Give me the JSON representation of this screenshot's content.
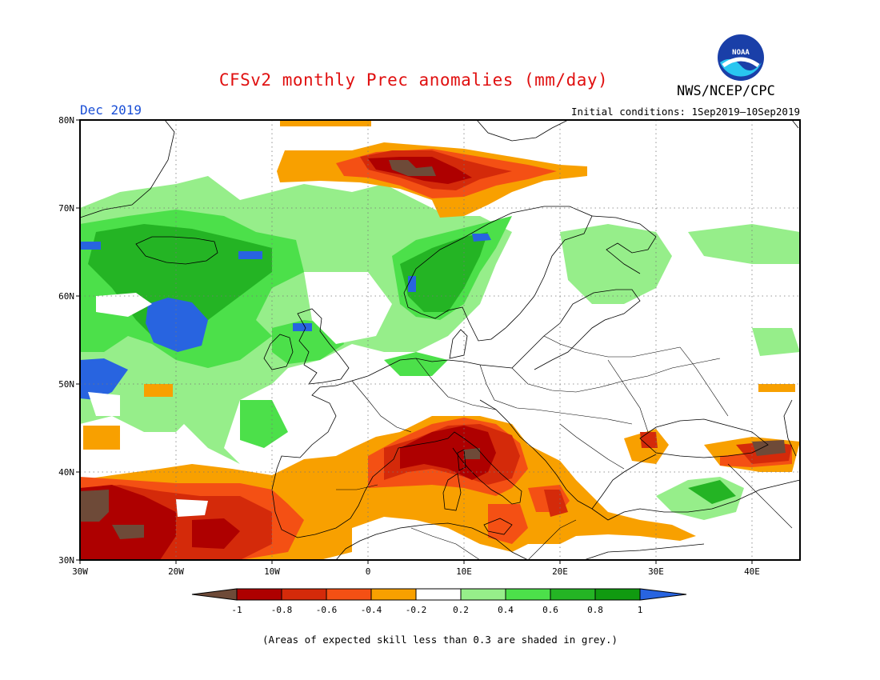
{
  "header": {
    "title": "CFSv2 monthly Prec anomalies (mm/day)",
    "agency": "NWS/NCEP/CPC",
    "logo_text": "NOAA",
    "month": "Dec 2019",
    "initial_conditions": "Initial conditions: 1Sep2019—10Sep2019"
  },
  "map": {
    "lat_labels": [
      "80N",
      "70N",
      "60N",
      "50N",
      "40N",
      "30N"
    ],
    "lon_labels": [
      "30W",
      "20W",
      "10W",
      "0",
      "10E",
      "20E",
      "30E",
      "40E"
    ],
    "extent": {
      "lon_min": -30,
      "lon_max": 45,
      "lat_min": 30,
      "lat_max": 80
    },
    "projection": "equirectangular",
    "grid": "dotted",
    "regions": [
      {
        "name": "barents-dry",
        "level": -0.9
      },
      {
        "name": "barents-wet-rim",
        "level": -0.5
      },
      {
        "name": "north-atlantic-wet",
        "level": 0.5
      },
      {
        "name": "norway-wet",
        "level": 0.7
      },
      {
        "name": "iberia-dry",
        "level": -0.5
      },
      {
        "name": "italy-dry",
        "level": -0.8
      },
      {
        "name": "atlantic-subtropics-dry",
        "level": -0.7
      },
      {
        "name": "turkey-wet",
        "level": 0.5
      }
    ]
  },
  "legend": {
    "labels": [
      "-1",
      "-0.8",
      "-0.6",
      "-0.4",
      "-0.2",
      "0.2",
      "0.4",
      "0.6",
      "0.8",
      "1"
    ],
    "colors": [
      "#6e4a38",
      "#ae0000",
      "#d42a0a",
      "#f45014",
      "#f8a000",
      "#ffffff",
      "#96ee8a",
      "#4ce04a",
      "#24b424",
      "#109a10",
      "#2864e0"
    ]
  },
  "footnote": "(Areas of expected skill less than 0.3 are shaded in grey.)"
}
